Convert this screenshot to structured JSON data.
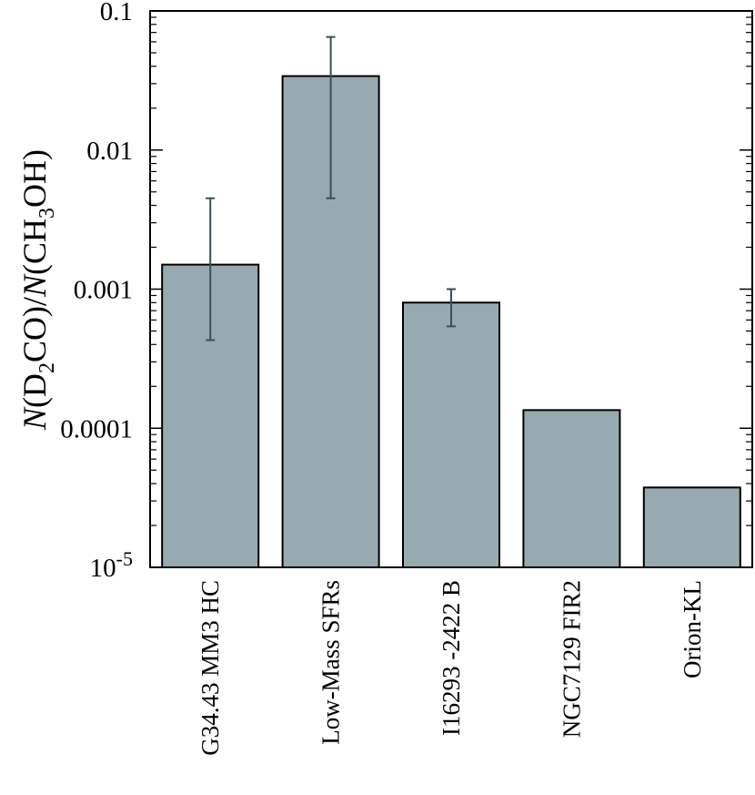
{
  "chart_data": {
    "type": "bar",
    "categories": [
      "G34.43 MM3 HC",
      "Low-Mass SFRs",
      "I16293 -2422 B",
      "NGC7129 FIR2",
      "Orion-KL"
    ],
    "values": [
      0.0015,
      0.034,
      0.0008,
      0.000135,
      3.75e-05
    ],
    "error_low": [
      0.00043,
      0.0045,
      0.00054,
      null,
      null
    ],
    "error_high": [
      0.0045,
      0.065,
      0.001,
      null,
      null
    ],
    "yscale": "log",
    "ylim": [
      1e-05,
      0.1
    ],
    "ylabel_parts": {
      "n1": "N",
      "p1": "(D",
      "s1": "2",
      "p2": "CO)/",
      "n2": "N",
      "p3": "(CH",
      "s2": "3",
      "p4": "OH)"
    },
    "yticks": [
      {
        "value": 0.1,
        "label": "0.1",
        "base": "",
        "exp": ""
      },
      {
        "value": 0.01,
        "label": "0.01",
        "base": "",
        "exp": ""
      },
      {
        "value": 0.001,
        "label": "0.001",
        "base": "",
        "exp": ""
      },
      {
        "value": 0.0001,
        "label": "0.0001",
        "base": "",
        "exp": ""
      },
      {
        "value": 1e-05,
        "label": "",
        "base": "10",
        "exp": "-5"
      }
    ],
    "title": "",
    "xlabel": "",
    "grid": false,
    "colors": {
      "bar_fill": "#98aab0",
      "bar_stroke": "#000000",
      "error_bar": "#3d4e55",
      "axis": "#000000"
    }
  }
}
